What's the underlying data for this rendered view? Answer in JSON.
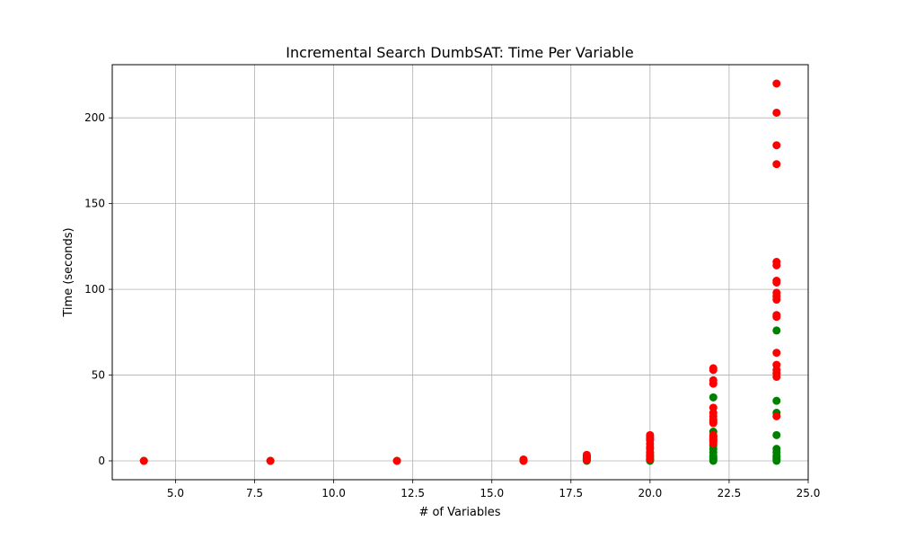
{
  "chart_data": {
    "type": "scatter",
    "title": "Incremental Search DumbSAT: Time Per Variable",
    "xlabel": "# of Variables",
    "ylabel": "Time (seconds)",
    "xlim": [
      3.0,
      25.0
    ],
    "ylim": [
      -11.0,
      231.0
    ],
    "xticks": [
      5.0,
      7.5,
      10.0,
      12.5,
      15.0,
      17.5,
      20.0,
      22.5,
      25.0
    ],
    "xtick_labels": [
      "5.0",
      "7.5",
      "10.0",
      "12.5",
      "15.0",
      "17.5",
      "20.0",
      "22.5",
      "25.0"
    ],
    "yticks": [
      0,
      50,
      100,
      150,
      200
    ],
    "ytick_labels": [
      "0",
      "50",
      "100",
      "150",
      "200"
    ],
    "grid": true,
    "legend": "none",
    "series": [
      {
        "color": "#008000",
        "points": [
          [
            4,
            0
          ],
          [
            8,
            0
          ],
          [
            12,
            0
          ],
          [
            16,
            0
          ],
          [
            16,
            0.5
          ],
          [
            18,
            0
          ],
          [
            18,
            0.5
          ],
          [
            18,
            1
          ],
          [
            18,
            1.5
          ],
          [
            20,
            0
          ],
          [
            20,
            0.5
          ],
          [
            20,
            1
          ],
          [
            20,
            2
          ],
          [
            20,
            3
          ],
          [
            20,
            4
          ],
          [
            20,
            5
          ],
          [
            22,
            0
          ],
          [
            22,
            1
          ],
          [
            22,
            2
          ],
          [
            22,
            3
          ],
          [
            22,
            5
          ],
          [
            22,
            7
          ],
          [
            22,
            9
          ],
          [
            22,
            12
          ],
          [
            22,
            14
          ],
          [
            22,
            17
          ],
          [
            22,
            23
          ],
          [
            22,
            37
          ],
          [
            24,
            0
          ],
          [
            24,
            1
          ],
          [
            24,
            2
          ],
          [
            24,
            3
          ],
          [
            24,
            5
          ],
          [
            24,
            7
          ],
          [
            24,
            15
          ],
          [
            24,
            28
          ],
          [
            24,
            35
          ],
          [
            24,
            76
          ]
        ]
      },
      {
        "color": "#ff0000",
        "points": [
          [
            4,
            0
          ],
          [
            8,
            0
          ],
          [
            12,
            0
          ],
          [
            16,
            0
          ],
          [
            16,
            0.3
          ],
          [
            16,
            0.8
          ],
          [
            18,
            0.5
          ],
          [
            18,
            1
          ],
          [
            18,
            1.5
          ],
          [
            18,
            2
          ],
          [
            18,
            2.5
          ],
          [
            18,
            3
          ],
          [
            18,
            3.5
          ],
          [
            20,
            1
          ],
          [
            20,
            3
          ],
          [
            20,
            5
          ],
          [
            20,
            7
          ],
          [
            20,
            8
          ],
          [
            20,
            10
          ],
          [
            20,
            12
          ],
          [
            20,
            13
          ],
          [
            20,
            14
          ],
          [
            20,
            15
          ],
          [
            22,
            10
          ],
          [
            22,
            11
          ],
          [
            22,
            12
          ],
          [
            22,
            13
          ],
          [
            22,
            14
          ],
          [
            22,
            15
          ],
          [
            22,
            22
          ],
          [
            22,
            24
          ],
          [
            22,
            26
          ],
          [
            22,
            28
          ],
          [
            22,
            31
          ],
          [
            22,
            45
          ],
          [
            22,
            47
          ],
          [
            22,
            53
          ],
          [
            22,
            54
          ],
          [
            24,
            26
          ],
          [
            24,
            49
          ],
          [
            24,
            51
          ],
          [
            24,
            53
          ],
          [
            24,
            56
          ],
          [
            24,
            63
          ],
          [
            24,
            84
          ],
          [
            24,
            85
          ],
          [
            24,
            94
          ],
          [
            24,
            96
          ],
          [
            24,
            98
          ],
          [
            24,
            104
          ],
          [
            24,
            105
          ],
          [
            24,
            114
          ],
          [
            24,
            116
          ],
          [
            24,
            173
          ],
          [
            24,
            184
          ],
          [
            24,
            203
          ],
          [
            24,
            220
          ]
        ]
      }
    ]
  }
}
